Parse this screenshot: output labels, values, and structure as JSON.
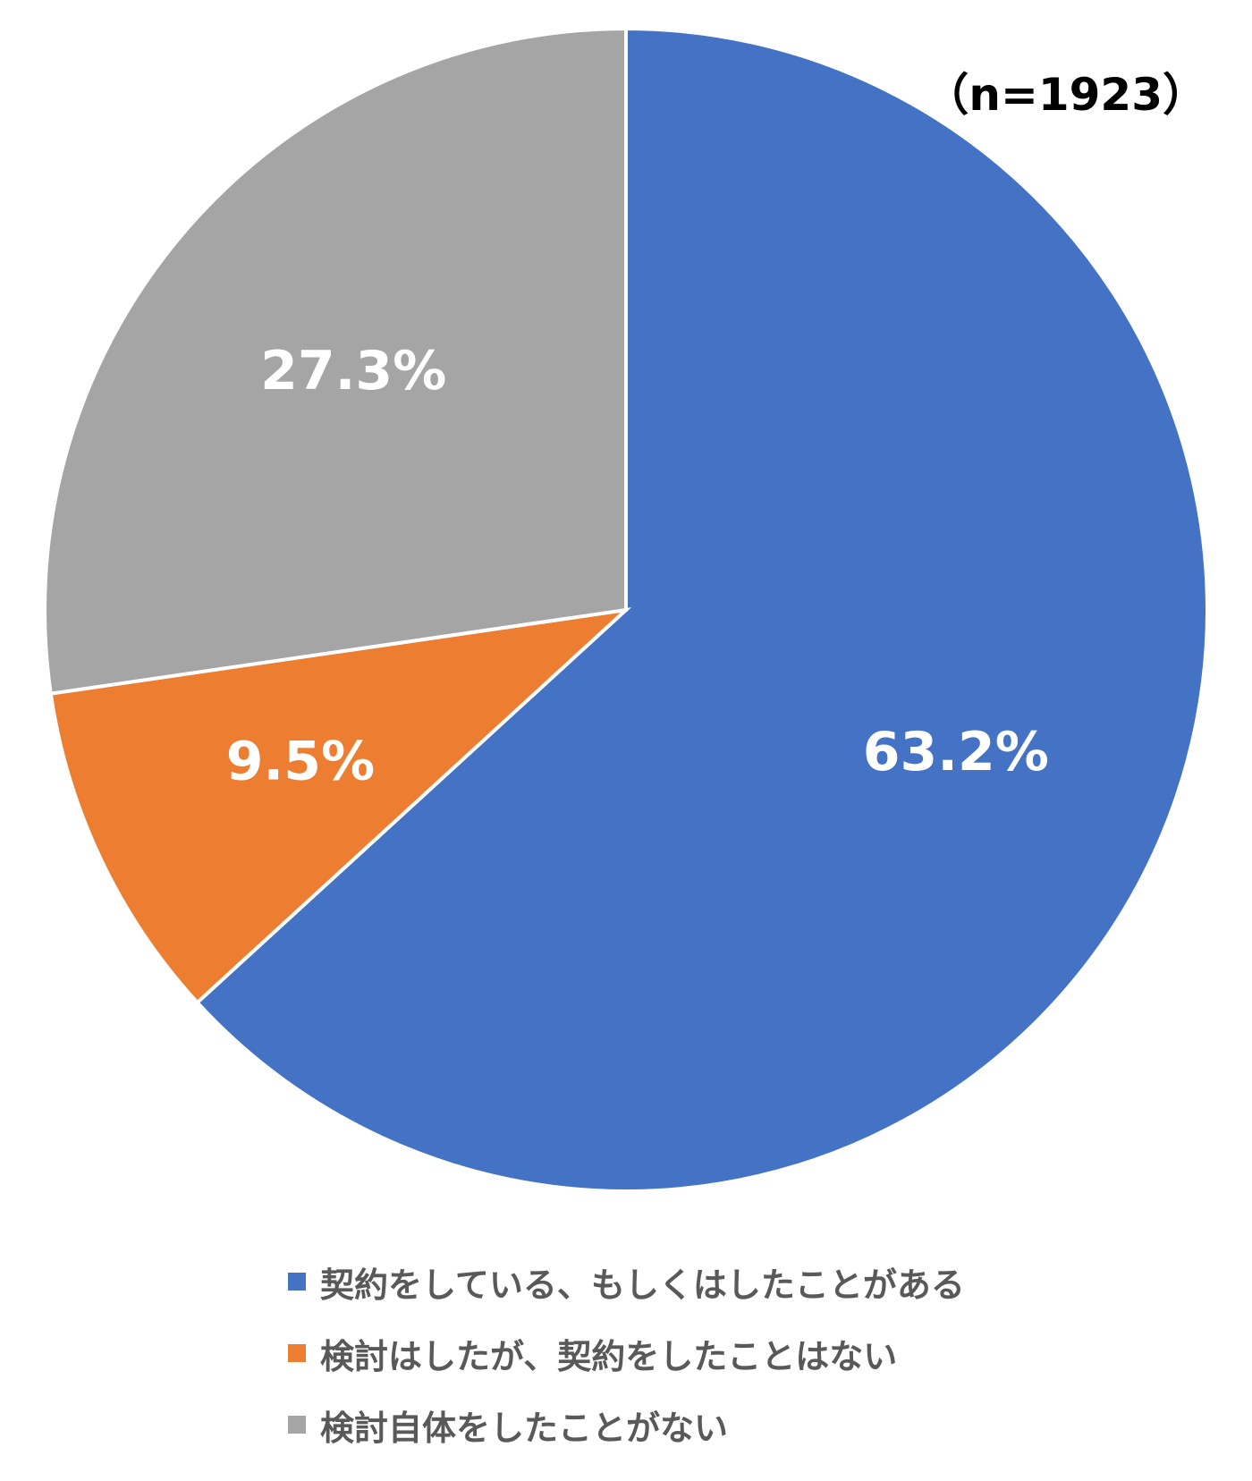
{
  "note": "（n=1923）",
  "chart_data": {
    "type": "pie",
    "categories": [
      "契約をしている、もしくはしたことがある",
      "検討はしたが、契約をしたことはない",
      "検討自体をしたことがない"
    ],
    "values": [
      63.2,
      9.5,
      27.3
    ],
    "value_labels": [
      "63.2%",
      "9.5%",
      "27.3%"
    ],
    "colors": [
      "#4472C4",
      "#ED7D31",
      "#A5A5A5"
    ],
    "start_angle": "12 o'clock",
    "direction": "clockwise",
    "legend_position": "bottom"
  }
}
